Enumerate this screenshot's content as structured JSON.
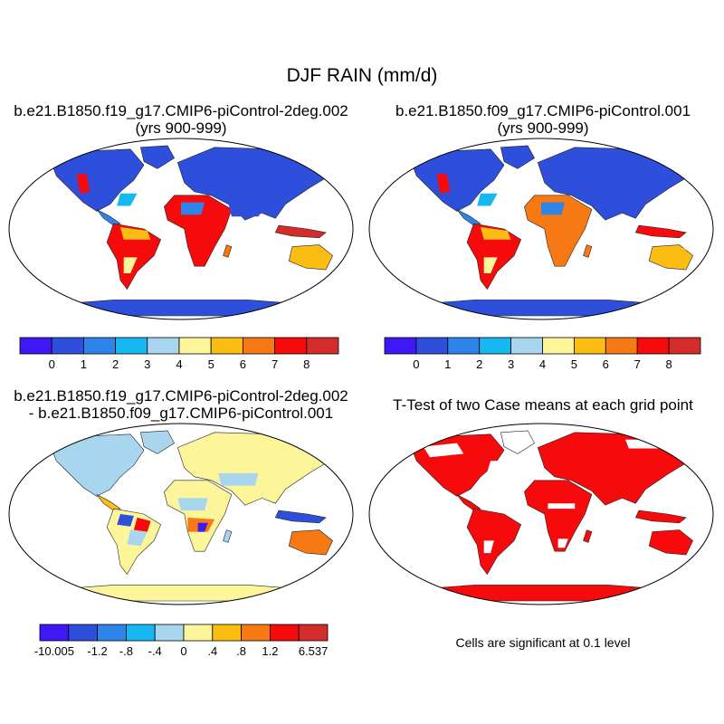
{
  "figure": {
    "title": "DJF RAIN (mm/d)",
    "note": "Cells are significant at 0.1 level"
  },
  "chart_data": [
    {
      "type": "heatmap",
      "title": "b.e21.B1850.f19_g17.CMIP6-piControl-2deg.002",
      "subtitle": "(yrs 900-999)",
      "colorbar": {
        "colors": [
          "#3f18f5",
          "#2e4fdc",
          "#2e84e9",
          "#16b8f2",
          "#a9d6ef",
          "#fdf59a",
          "#fbbd12",
          "#f77913",
          "#f70a0c",
          "#d42b2b"
        ],
        "ticks": [
          "0",
          "1",
          "2",
          "3",
          "4",
          "5",
          "6",
          "7",
          "8"
        ],
        "levels": [
          0,
          1,
          2,
          3,
          4,
          5,
          6,
          7,
          8
        ]
      }
    },
    {
      "type": "heatmap",
      "title": "b.e21.B1850.f09_g17.CMIP6-piControl.001",
      "subtitle": "(yrs 900-999)",
      "colorbar": {
        "colors": [
          "#3f18f5",
          "#2e4fdc",
          "#2e84e9",
          "#16b8f2",
          "#a9d6ef",
          "#fdf59a",
          "#fbbd12",
          "#f77913",
          "#f70a0c",
          "#d42b2b"
        ],
        "ticks": [
          "0",
          "1",
          "2",
          "3",
          "4",
          "5",
          "6",
          "7",
          "8"
        ],
        "levels": [
          0,
          1,
          2,
          3,
          4,
          5,
          6,
          7,
          8
        ]
      }
    },
    {
      "type": "heatmap",
      "title": "b.e21.B1850.f19_g17.CMIP6-piControl-2deg.002",
      "subtitle": "- b.e21.B1850.f09_g17.CMIP6-piControl.001",
      "colorbar": {
        "colors": [
          "#3f18f5",
          "#2e4fdc",
          "#2e84e9",
          "#16b8f2",
          "#a9d6ef",
          "#fdf59a",
          "#fbbd12",
          "#f77913",
          "#f70a0c",
          "#d42b2b"
        ],
        "ticks": [
          "-10.005",
          "-1.2",
          "-.8",
          "-.4",
          "0",
          ".4",
          ".8",
          "1.2",
          "6.537"
        ],
        "levels": [
          -10.005,
          -1.2,
          -0.8,
          -0.4,
          0,
          0.4,
          0.8,
          1.2,
          6.537
        ]
      }
    },
    {
      "type": "heatmap",
      "title": "T-Test of two Case means at each grid point",
      "significance_color": "#f70a0c",
      "significance_level": 0.1
    }
  ]
}
